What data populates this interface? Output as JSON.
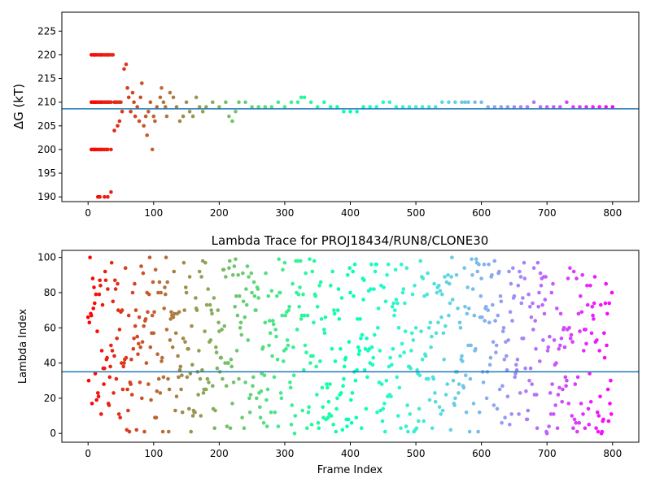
{
  "chart_data": [
    {
      "type": "scatter",
      "title": "",
      "xlabel": "",
      "ylabel": "ΔG (kT)",
      "xlim": [
        -40,
        840
      ],
      "ylim": [
        189,
        229
      ],
      "xticks": [
        0,
        100,
        200,
        300,
        400,
        500,
        600,
        700,
        800
      ],
      "yticks": [
        190,
        195,
        200,
        205,
        210,
        215,
        220,
        225
      ],
      "hline": 208.6,
      "hline_color": "#1f77b4",
      "colormap": "rainbow (red at frame 0 to violet at frame 800)",
      "series": [
        {
          "x": [
            5,
            8,
            10,
            12,
            15,
            18,
            20,
            22,
            25,
            28,
            30,
            32,
            35,
            38,
            40,
            42,
            45,
            48,
            50,
            5,
            8,
            10,
            12,
            15,
            18,
            20,
            22,
            25,
            28,
            30,
            32,
            35,
            5,
            8,
            10,
            12,
            15,
            18,
            20,
            22,
            25,
            28,
            30,
            35,
            15,
            18,
            25,
            30,
            35,
            40,
            45,
            48,
            52,
            55,
            58,
            60,
            62,
            65,
            68,
            70,
            72,
            75,
            78,
            80,
            82,
            85,
            88,
            90,
            92,
            95,
            98,
            100,
            102,
            105,
            110,
            112,
            115,
            118,
            120,
            125,
            130,
            135,
            140,
            145,
            150,
            155,
            160,
            165,
            170,
            175,
            180,
            190,
            200,
            210,
            215,
            220,
            225,
            230,
            240,
            250,
            260,
            270,
            280,
            290,
            300,
            310,
            320,
            325,
            330,
            340,
            350,
            360,
            370,
            380,
            390,
            400,
            410,
            420,
            430,
            440,
            450,
            460,
            470,
            480,
            490,
            500,
            510,
            520,
            530,
            540,
            550,
            560,
            570,
            575,
            580,
            590,
            600,
            610,
            620,
            630,
            640,
            650,
            660,
            670,
            680,
            690,
            700,
            710,
            720,
            730,
            740,
            750,
            760,
            770,
            780,
            790,
            800
          ],
          "y": [
            220,
            220,
            220,
            220,
            220,
            220,
            220,
            220,
            220,
            220,
            220,
            220,
            220,
            220,
            210,
            210,
            210,
            210,
            210,
            210,
            210,
            210,
            210,
            210,
            210,
            210,
            210,
            210,
            210,
            210,
            210,
            210,
            200,
            200,
            200,
            200,
            200,
            200,
            200,
            200,
            200,
            200,
            200,
            200,
            190,
            190,
            190,
            190,
            191,
            204,
            205,
            206,
            208,
            217,
            218,
            213,
            211,
            208,
            212,
            210,
            207,
            209,
            206,
            211,
            214,
            205,
            207,
            203,
            208,
            210,
            200,
            207,
            206,
            209,
            211,
            213,
            210,
            209,
            207,
            212,
            211,
            209,
            206,
            207,
            210,
            208,
            207,
            211,
            209,
            208,
            209,
            210,
            209,
            210,
            207,
            206,
            208,
            210,
            210,
            209,
            209,
            209,
            209,
            210,
            209,
            210,
            210,
            211,
            211,
            210,
            209,
            210,
            209,
            209,
            208,
            208,
            208,
            209,
            209,
            209,
            210,
            210,
            209,
            209,
            209,
            209,
            209,
            209,
            209,
            210,
            210,
            210,
            210,
            210,
            210,
            210,
            210,
            209,
            209,
            209,
            209,
            209,
            209,
            209,
            210,
            209,
            209,
            209,
            209,
            210,
            209,
            209,
            209,
            209,
            209,
            209,
            209
          ]
        }
      ]
    },
    {
      "type": "scatter",
      "title": "Lambda Trace for PROJ18434/RUN8/CLONE30",
      "xlabel": "Frame Index",
      "ylabel": "Lambda Index",
      "xlim": [
        -40,
        840
      ],
      "ylim": [
        -5,
        104
      ],
      "xticks": [
        0,
        100,
        200,
        300,
        400,
        500,
        600,
        700,
        800
      ],
      "yticks": [
        0,
        20,
        40,
        60,
        80,
        100
      ],
      "hline": 35,
      "hline_color": "#1f77b4",
      "colormap": "rainbow (red at frame 0 to violet at frame 800)",
      "n_points": 800,
      "range": [
        0,
        100
      ]
    }
  ]
}
